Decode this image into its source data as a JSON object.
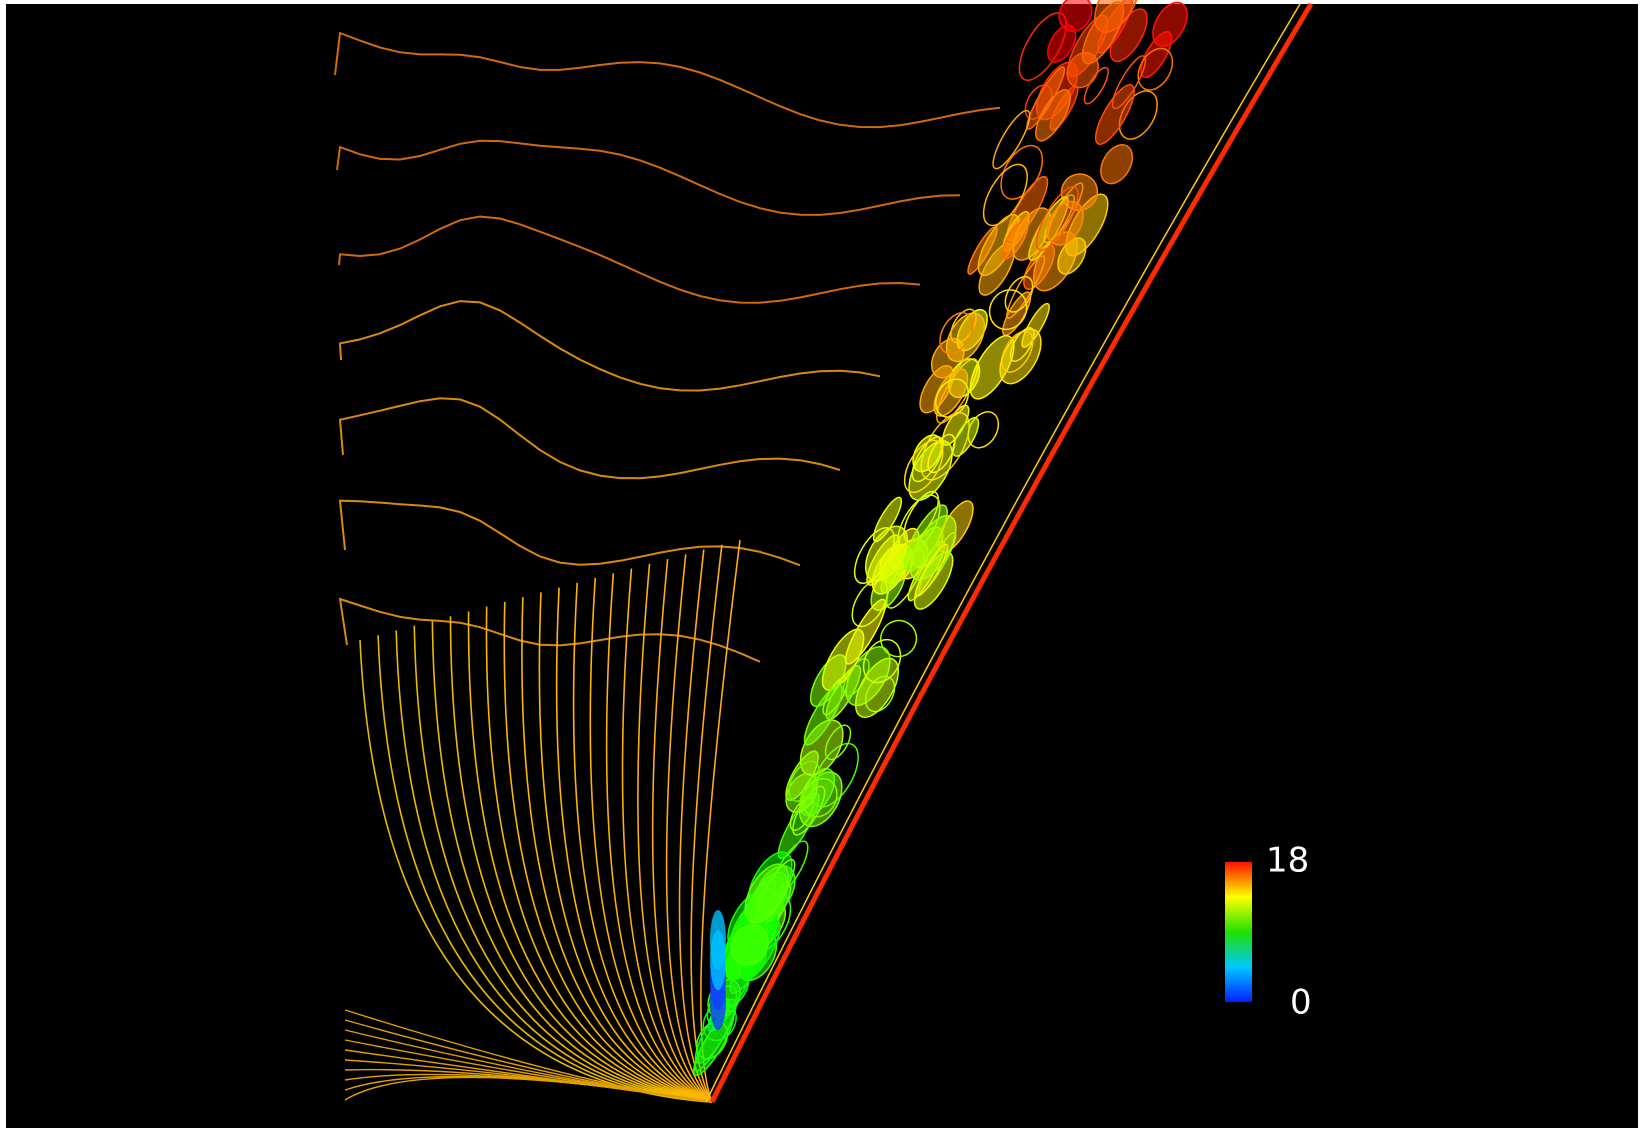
{
  "colorbar": {
    "max": 18,
    "min": 0
  }
}
